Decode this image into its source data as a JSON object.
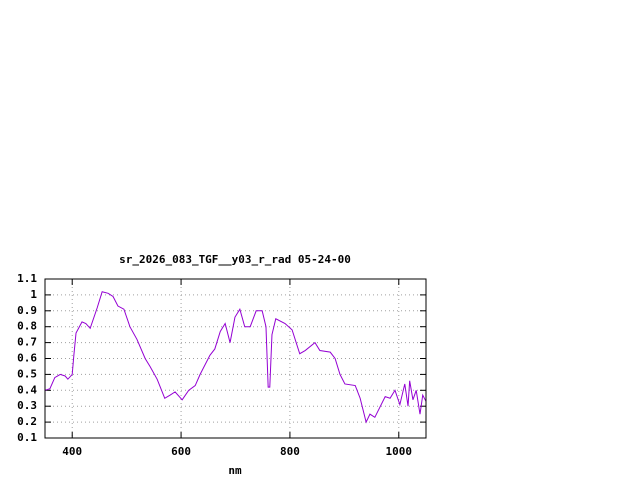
{
  "chart_data": {
    "type": "line",
    "title": "sr_2026_083_TGF__y03_r_rad 05-24-00",
    "x_label": "nm",
    "xlim": [
      350,
      1050
    ],
    "xticks": [
      400,
      600,
      800,
      1000
    ],
    "ylim": [
      0.1,
      1.1
    ],
    "yticks": [
      1.1,
      1,
      0.9,
      0.8,
      0.7,
      0.6,
      0.5,
      0.4,
      0.3,
      0.2,
      0.1
    ],
    "grid": true,
    "x": [
      350,
      359,
      368,
      378,
      387,
      392,
      400,
      403,
      407,
      418,
      425,
      433,
      446,
      455,
      466,
      475,
      484,
      495,
      506,
      519,
      534,
      543,
      556,
      570,
      580,
      589,
      602,
      614,
      626,
      635,
      653,
      662,
      672,
      681,
      690,
      699,
      708,
      717,
      727,
      738,
      749,
      756,
      760,
      763,
      767,
      774,
      791,
      804,
      818,
      828,
      846,
      855,
      874,
      883,
      892,
      901,
      920,
      929,
      940,
      947,
      956,
      975,
      984,
      993,
      1002,
      1011,
      1017,
      1020,
      1026,
      1032,
      1039,
      1044,
      1050
    ],
    "series": [
      {
        "color": "#9400d3",
        "values": [
          0.4,
          0.41,
          0.48,
          0.5,
          0.49,
          0.47,
          0.5,
          0.62,
          0.76,
          0.83,
          0.82,
          0.79,
          0.92,
          1.02,
          1.01,
          0.99,
          0.93,
          0.91,
          0.8,
          0.72,
          0.6,
          0.55,
          0.47,
          0.35,
          0.37,
          0.39,
          0.34,
          0.4,
          0.43,
          0.5,
          0.62,
          0.66,
          0.77,
          0.82,
          0.7,
          0.86,
          0.91,
          0.8,
          0.8,
          0.9,
          0.9,
          0.8,
          0.42,
          0.42,
          0.75,
          0.85,
          0.82,
          0.78,
          0.63,
          0.65,
          0.7,
          0.65,
          0.64,
          0.6,
          0.5,
          0.44,
          0.43,
          0.35,
          0.2,
          0.25,
          0.23,
          0.36,
          0.35,
          0.4,
          0.31,
          0.44,
          0.3,
          0.46,
          0.34,
          0.4,
          0.25,
          0.37,
          0.33
        ]
      }
    ]
  }
}
